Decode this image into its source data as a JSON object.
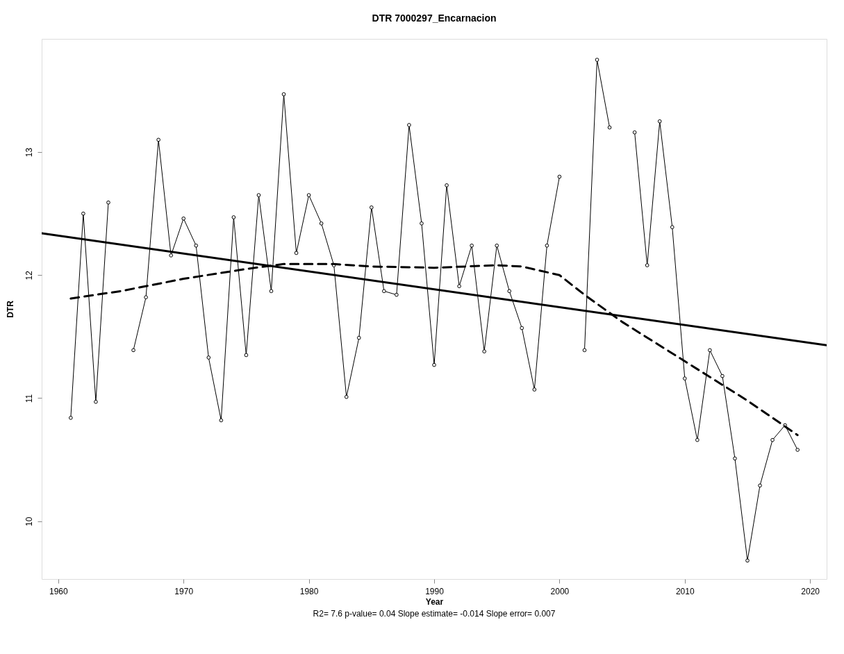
{
  "chart_data": {
    "type": "line",
    "title": "DTR   7000297_Encarnacion",
    "xlabel": "Year",
    "ylabel": "DTR",
    "annotations": [
      "R2= 7.6  p-value= 0.04  Slope estimate= -0.014  Slope error= 0.007"
    ],
    "x": [
      1961,
      1962,
      1963,
      1964,
      1965,
      1966,
      1967,
      1968,
      1969,
      1970,
      1971,
      1972,
      1973,
      1974,
      1975,
      1976,
      1977,
      1978,
      1979,
      1980,
      1981,
      1982,
      1983,
      1984,
      1985,
      1986,
      1987,
      1988,
      1989,
      1990,
      1991,
      1992,
      1993,
      1994,
      1995,
      1996,
      1997,
      1998,
      1999,
      2000,
      2001,
      2002,
      2003,
      2004,
      2005,
      2006,
      2007,
      2008,
      2009,
      2010,
      2011,
      2012,
      2013,
      2014,
      2015,
      2016,
      2017,
      2018,
      2019
    ],
    "series": [
      {
        "color": "#000000",
        "marker": "circle",
        "line_style": "solid",
        "values": [
          10.84,
          12.5,
          10.97,
          12.59,
          null,
          11.39,
          11.82,
          13.1,
          12.16,
          12.46,
          12.24,
          11.33,
          10.82,
          12.47,
          11.35,
          12.65,
          11.87,
          13.47,
          12.18,
          12.65,
          12.42,
          12.08,
          11.01,
          11.49,
          12.55,
          11.87,
          11.84,
          13.22,
          12.42,
          11.27,
          12.73,
          11.91,
          12.24,
          11.38,
          12.24,
          11.87,
          11.57,
          11.07,
          12.24,
          12.8,
          null,
          11.39,
          13.75,
          13.2,
          null,
          13.16,
          12.08,
          13.25,
          12.39,
          11.16,
          10.66,
          11.39,
          11.18,
          10.51,
          9.68,
          10.29,
          10.66,
          10.78,
          10.58
        ]
      },
      {
        "color": "#000000",
        "marker": "none",
        "line_style": "solid",
        "x": [
          1958.68,
          2021.32
        ],
        "values": [
          12.34,
          11.43
        ]
      },
      {
        "color": "#000000",
        "marker": "none",
        "line_style": "dashed",
        "x": [
          1961,
          1965,
          1970,
          1975,
          1978,
          1982,
          1985,
          1990,
          1995,
          1997,
          2000,
          2002,
          2005,
          2010,
          2015,
          2019
        ],
        "values": [
          11.81,
          11.87,
          11.97,
          12.05,
          12.09,
          12.09,
          12.07,
          12.06,
          12.08,
          12.07,
          12.0,
          11.84,
          11.62,
          11.3,
          10.98,
          10.7
        ]
      }
    ],
    "xlim": [
      1958.68,
      2021.32
    ],
    "ylim": [
      9.53,
      13.92
    ],
    "xticks": [
      1960,
      1970,
      1980,
      1990,
      2000,
      2010,
      2020
    ],
    "yticks": [
      10,
      11,
      12,
      13
    ],
    "grid": false
  }
}
